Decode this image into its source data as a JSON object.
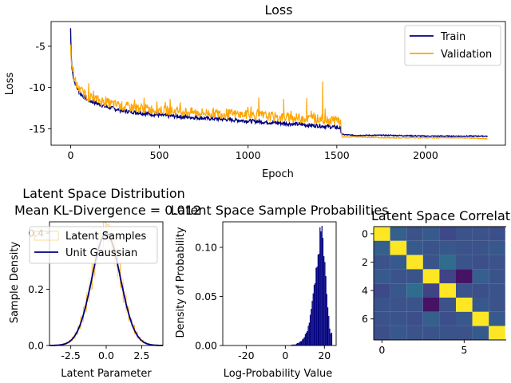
{
  "chart_data": [
    {
      "type": "line",
      "title": "Loss",
      "xlabel": "Epoch",
      "ylabel": "Loss",
      "xlim": [
        -110,
        2450
      ],
      "ylim": [
        -17,
        -2
      ],
      "xticks": [
        0,
        500,
        1000,
        1500,
        2000
      ],
      "yticks": [
        -5,
        -10,
        -15
      ],
      "legend": "top-right",
      "series": [
        {
          "name": "Train",
          "color": "#00007f",
          "x": [
            0,
            2,
            5,
            10,
            20,
            50,
            100,
            200,
            300,
            500,
            700,
            1000,
            1200,
            1400,
            1500,
            1520,
            1530,
            1600,
            1800,
            2000,
            2200,
            2350
          ],
          "y": [
            -2.8,
            -5.5,
            -7.0,
            -8.0,
            -9.2,
            -10.6,
            -11.5,
            -12.3,
            -12.8,
            -13.3,
            -13.6,
            -14.0,
            -14.3,
            -14.6,
            -14.8,
            -14.9,
            -15.7,
            -15.8,
            -15.8,
            -15.9,
            -15.9,
            -15.9
          ]
        },
        {
          "name": "Validation",
          "color": "#ffa500",
          "x": [
            0,
            2,
            5,
            10,
            20,
            50,
            100,
            200,
            300,
            500,
            700,
            1000,
            1200,
            1400,
            1500,
            1520,
            1530,
            1600,
            1800,
            2000,
            2200,
            2350
          ],
          "y": [
            -4.8,
            -6.0,
            -7.3,
            -8.2,
            -9.3,
            -10.5,
            -11.3,
            -12.0,
            -12.5,
            -12.9,
            -13.2,
            -13.5,
            -13.8,
            -14.0,
            -14.2,
            -14.3,
            -16.0,
            -16.0,
            -16.1,
            -16.1,
            -16.1,
            -16.2
          ]
        }
      ],
      "spikes": [
        {
          "x": 1420,
          "y": -9.3
        },
        {
          "x": 1060,
          "y": -11.2
        },
        {
          "x": 1200,
          "y": -11.4
        },
        {
          "x": 1330,
          "y": -11.3
        }
      ]
    },
    {
      "type": "area",
      "title": "Latent Space Distribution",
      "subtitle": "Mean KL-Divergence = 0.012",
      "xlabel": "Latent Parameter",
      "ylabel": "Sample Density",
      "xlim": [
        -4,
        4
      ],
      "ylim": [
        0,
        0.44
      ],
      "xticks": [
        -2.5,
        0.0,
        2.5
      ],
      "yticks": [
        0.0,
        0.2,
        0.4
      ],
      "legend": "top-left",
      "series": [
        {
          "name": "Latent Samples",
          "color": "#ffa500"
        },
        {
          "name": "Unit Gaussian",
          "color": "#00007f"
        }
      ]
    },
    {
      "type": "bar",
      "title": "Latent Space Sample Probabilities",
      "xlabel": "Log-Probability Value",
      "ylabel": "Density of Probability",
      "xlim": [
        -32,
        26
      ],
      "ylim": [
        0,
        0.126
      ],
      "xticks": [
        -20,
        0,
        20
      ],
      "yticks": [
        0.0,
        0.05,
        0.1
      ],
      "color": "#00007f",
      "x": [
        5,
        7,
        9,
        10,
        11,
        12,
        13,
        14,
        15,
        16,
        17,
        17.5,
        18,
        18.5,
        19,
        20,
        21,
        22,
        23
      ],
      "values": [
        0.001,
        0.003,
        0.006,
        0.01,
        0.015,
        0.022,
        0.032,
        0.045,
        0.06,
        0.078,
        0.098,
        0.115,
        0.122,
        0.118,
        0.105,
        0.085,
        0.06,
        0.035,
        0.012
      ]
    },
    {
      "type": "heatmap",
      "title": "Latent Space Correlat",
      "xticks": [
        0,
        5
      ],
      "yticks": [
        0,
        2,
        4,
        6
      ],
      "size": 8,
      "values": [
        [
          1.0,
          0.3,
          0.25,
          0.28,
          0.22,
          0.26,
          0.25,
          0.24
        ],
        [
          0.3,
          1.0,
          0.28,
          0.26,
          0.27,
          0.25,
          0.26,
          0.27
        ],
        [
          0.25,
          0.28,
          1.0,
          0.26,
          0.35,
          0.26,
          0.24,
          0.25
        ],
        [
          0.28,
          0.26,
          0.26,
          1.0,
          0.2,
          0.05,
          0.3,
          0.26
        ],
        [
          0.22,
          0.27,
          0.35,
          0.2,
          1.0,
          0.25,
          0.24,
          0.26
        ],
        [
          0.26,
          0.25,
          0.26,
          0.05,
          0.25,
          1.0,
          0.27,
          0.25
        ],
        [
          0.25,
          0.26,
          0.24,
          0.3,
          0.24,
          0.27,
          1.0,
          0.28
        ],
        [
          0.24,
          0.27,
          0.25,
          0.26,
          0.26,
          0.25,
          0.28,
          1.0
        ]
      ]
    }
  ]
}
